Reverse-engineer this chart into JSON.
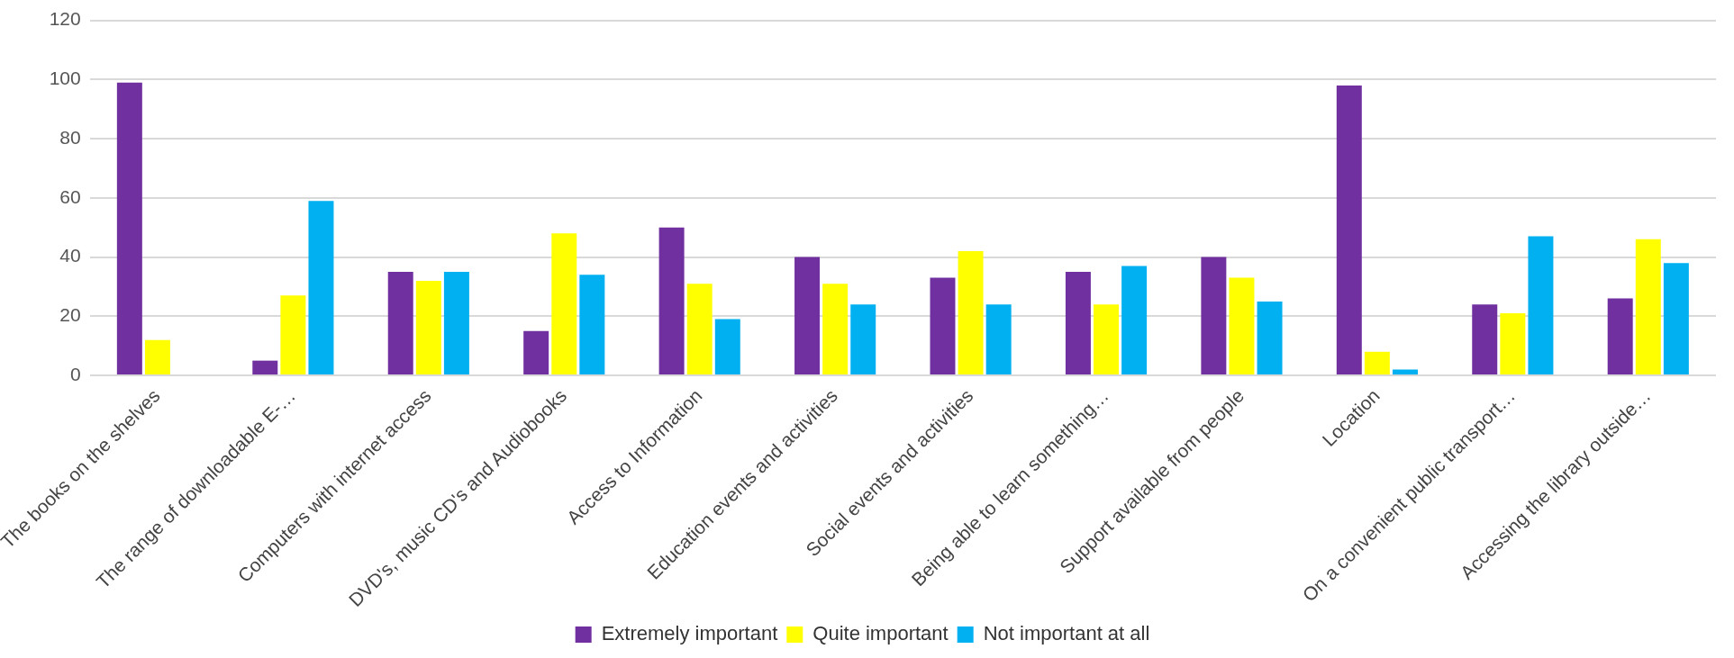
{
  "chart_data": {
    "type": "bar",
    "categories": [
      "The books on the shelves",
      "The range of downloadable E-…",
      "Computers with internet access",
      "DVD's, music CD's and Audiobooks",
      "Access to Information",
      "Education events and activities",
      "Social events and activities",
      "Being able to learn something…",
      "Support available from people",
      "Location",
      "On a convenient public transport…",
      "Accessing the library outside…"
    ],
    "series": [
      {
        "name": "Extremely important",
        "color": "#7030a0",
        "values": [
          99,
          5,
          35,
          15,
          50,
          40,
          33,
          35,
          40,
          98,
          24,
          26
        ]
      },
      {
        "name": "Quite important",
        "color": "#ffff00",
        "values": [
          12,
          27,
          32,
          48,
          31,
          31,
          42,
          24,
          33,
          8,
          21,
          46
        ]
      },
      {
        "name": "Not important at all",
        "color": "#00b0f0",
        "values": [
          null,
          59,
          35,
          34,
          19,
          24,
          24,
          37,
          25,
          2,
          47,
          38
        ]
      }
    ],
    "ylim": [
      0,
      120
    ],
    "yticks": [
      0,
      20,
      40,
      60,
      80,
      100,
      120
    ],
    "grid": "y",
    "legend": "bottom"
  }
}
